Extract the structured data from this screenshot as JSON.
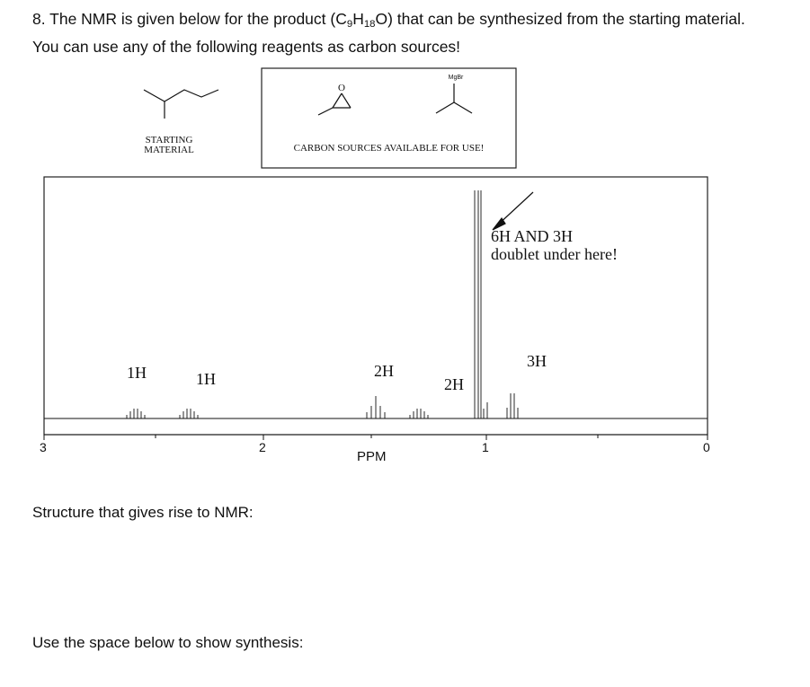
{
  "question": {
    "number": "8.",
    "line1_pre": "The NMR is given below for the product (C",
    "sub_c": "9",
    "mid_h": "H",
    "sub_h": "18",
    "line1_post": "O) that can be synthesized from the starting material.",
    "line2": "You can use any of the following reagents as carbon sources!"
  },
  "starting_material": {
    "label_line1": "STARTING",
    "label_line2": "MATERIAL"
  },
  "carbon_sources": {
    "label": "CARBON SOURCES AVAILABLE FOR USE!",
    "epoxide_atom": "O",
    "grignard_label": "MgBr"
  },
  "nmr": {
    "annotation_line1": "6H AND 3H",
    "annotation_line2": "doublet under here!",
    "integrations": [
      "1H",
      "1H",
      "2H",
      "2H",
      "3H"
    ],
    "axis_label": "PPM",
    "ticks": [
      "3",
      "2",
      "1",
      "0"
    ]
  },
  "prompts": {
    "structure": "Structure that gives rise to NMR:",
    "synthesis": "Use the space below to show synthesis:"
  }
}
